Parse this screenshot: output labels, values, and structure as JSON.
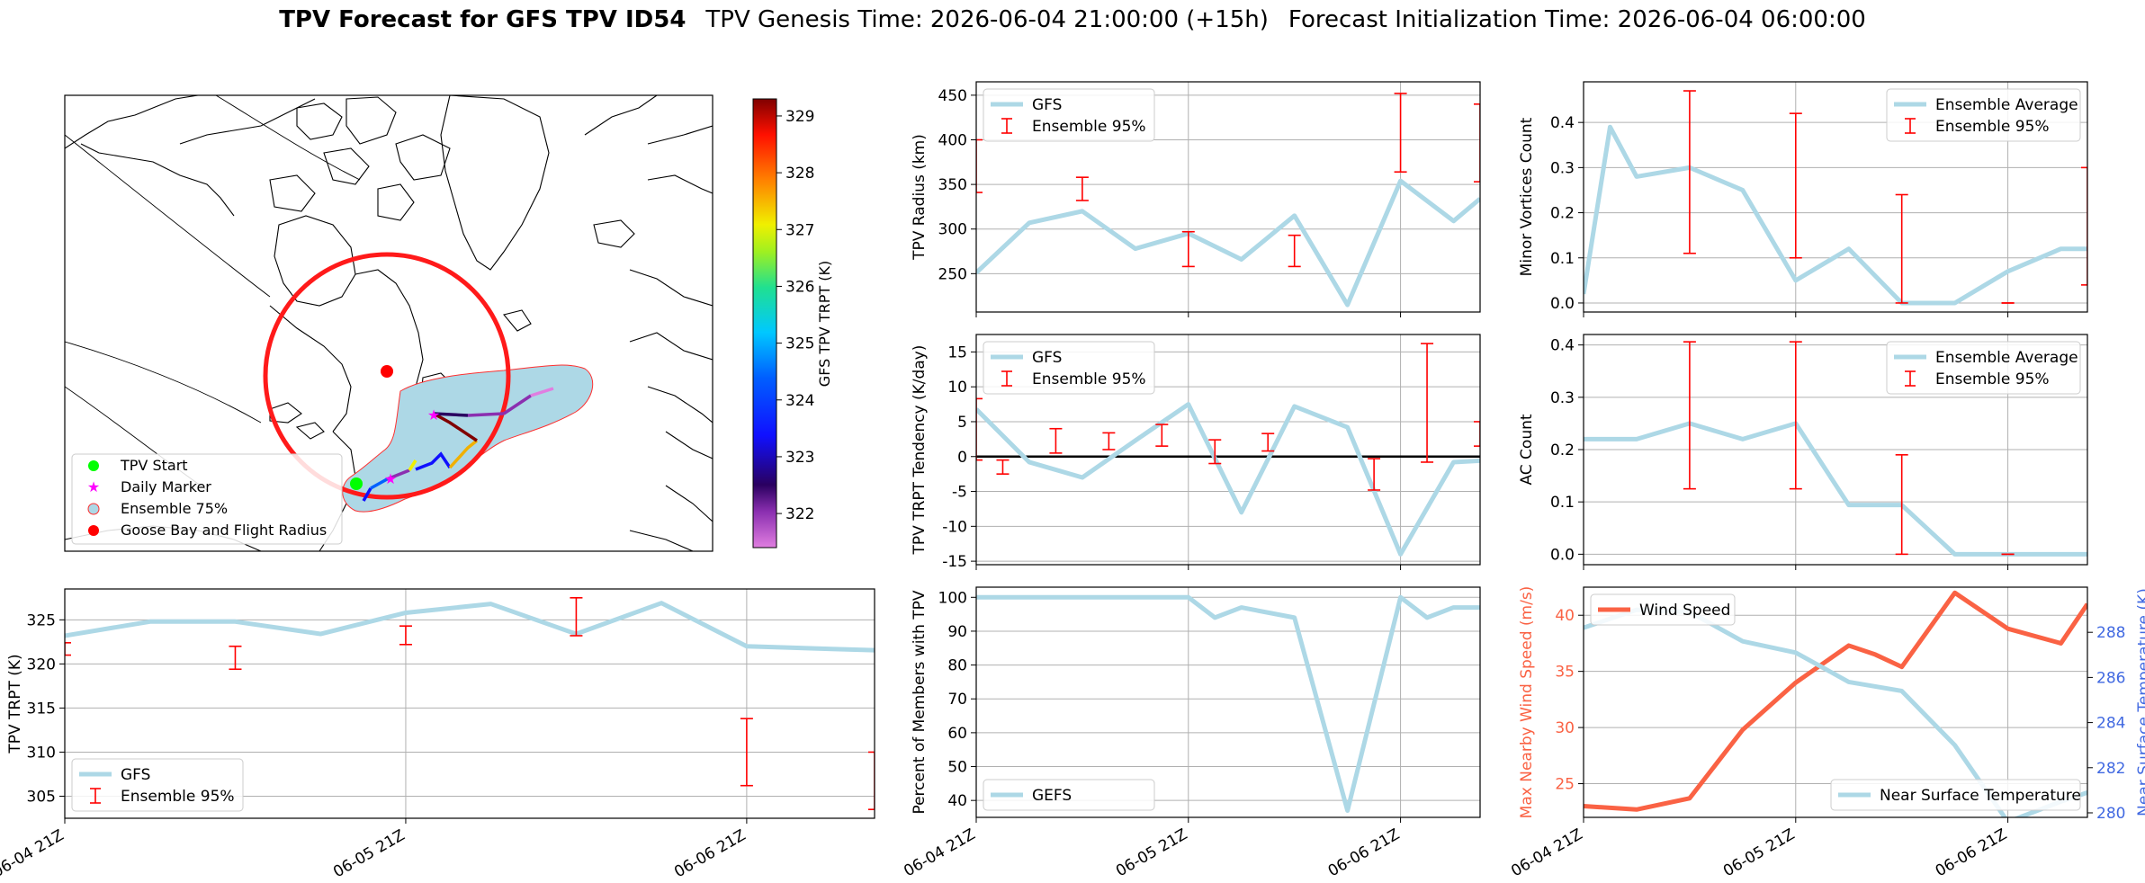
{
  "title": {
    "bold": "TPV Forecast for GFS TPV ID54",
    "genesis": "TPV Genesis Time: 2026-06-04 21:00:00 (+15h)",
    "init": "Forecast Initialization Time: 2026-06-04 06:00:00"
  },
  "colors": {
    "gfs_line": "#add8e6",
    "errorbar": "#ff0000",
    "wind": "#fa6244",
    "temp_axis": "#4169e1",
    "circle": "#ff1a1a",
    "land": "#ffffff",
    "ensemble_area": "#add8e6"
  },
  "chart_data": [
    {
      "id": "map",
      "type": "map",
      "colorbar": {
        "label": "GFS TPV TRPT (K)",
        "range": [
          321.4,
          329.3
        ],
        "ticks": [
          322,
          323,
          324,
          325,
          326,
          327,
          328,
          329
        ]
      },
      "legend": {
        "position": "lower-left",
        "entries": [
          "TPV Start",
          "Daily Marker",
          "Ensemble 75%",
          "Goose Bay and Flight Radius"
        ]
      },
      "marker_colors": {
        "tpv_start": "#00ff00",
        "daily_marker": "#ff00ff",
        "goose_bay": "#ff0000"
      }
    },
    {
      "id": "trpt",
      "type": "line",
      "ylabel": "TPV TRPT (K)",
      "ylim": [
        302.5,
        328.5
      ],
      "yticks": [
        305,
        310,
        315,
        320,
        325
      ],
      "xlim": [
        0,
        57
      ],
      "xticks": [
        0,
        24,
        48
      ],
      "xtick_labels": [
        "06-04 21Z",
        "06-05 21Z",
        "06-06 21Z"
      ],
      "series": [
        {
          "name": "GFS",
          "x": [
            0,
            6,
            12,
            18,
            24,
            30,
            36,
            42,
            48,
            54,
            60
          ],
          "y": [
            323.2,
            324.8,
            324.8,
            323.4,
            325.8,
            326.8,
            323.4,
            326.9,
            322.0,
            321.7,
            321.4
          ]
        }
      ],
      "errorbars": {
        "name": "Ensemble 95%",
        "x": [
          0,
          12,
          24,
          36,
          48,
          57
        ],
        "low": [
          321.0,
          319.4,
          322.2,
          323.2,
          306.2,
          303.5
        ],
        "high": [
          322.4,
          322.0,
          324.3,
          327.5,
          313.8,
          310.0
        ]
      },
      "legend": "lower-left"
    },
    {
      "id": "radius",
      "type": "line",
      "ylabel": "TPV Radius (km)",
      "ylim": [
        207,
        465
      ],
      "yticks": [
        250,
        300,
        350,
        400,
        450
      ],
      "xlim": [
        0,
        57
      ],
      "xticks": [
        0,
        24,
        48
      ],
      "series": [
        {
          "name": "GFS",
          "x": [
            0,
            6,
            12,
            18,
            24,
            30,
            36,
            42,
            48,
            54,
            57
          ],
          "y": [
            251,
            307,
            320,
            278,
            295,
            266,
            315,
            215,
            354,
            309,
            334
          ]
        }
      ],
      "errorbars": {
        "name": "Ensemble 95%",
        "x": [
          0,
          12,
          24,
          36,
          48,
          57
        ],
        "low": [
          341,
          332,
          258,
          258,
          364,
          353
        ],
        "high": [
          400,
          358,
          297,
          293,
          452,
          440
        ]
      },
      "legend": "upper-left"
    },
    {
      "id": "tendency",
      "type": "line",
      "ylabel": "TPV TRPT Tendency (K/day)",
      "ylim": [
        -15.5,
        17.5
      ],
      "yticks": [
        -15,
        -10,
        -5,
        0,
        5,
        10,
        15
      ],
      "xlim": [
        0,
        57
      ],
      "xticks": [
        0,
        24,
        48
      ],
      "zero_line": true,
      "series": [
        {
          "name": "GFS",
          "x": [
            0,
            6,
            12,
            18,
            24,
            30,
            36,
            42,
            48,
            54,
            57
          ],
          "y": [
            6.8,
            -0.8,
            -3.0,
            2.3,
            7.5,
            -8.0,
            7.2,
            4.2,
            -14.0,
            -0.8,
            -0.6
          ]
        }
      ],
      "errorbars": {
        "name": "Ensemble 95%",
        "x": [
          0,
          3,
          9,
          15,
          21,
          27,
          33,
          45,
          51,
          57
        ],
        "low": [
          -0.5,
          -2.5,
          0.5,
          1.0,
          1.5,
          -1.0,
          0.8,
          -4.8,
          -0.8,
          1.5
        ],
        "high": [
          8.3,
          -0.5,
          4.0,
          3.4,
          4.6,
          2.4,
          3.3,
          -0.3,
          16.2,
          5.0
        ]
      },
      "legend": "upper-left"
    },
    {
      "id": "members",
      "type": "line",
      "ylabel": "Percent of Members with TPV",
      "ylim": [
        35,
        103
      ],
      "yticks": [
        40,
        50,
        60,
        70,
        80,
        90,
        100
      ],
      "xlim": [
        0,
        57
      ],
      "xticks": [
        0,
        24,
        48
      ],
      "xtick_labels": [
        "06-04 21Z",
        "06-05 21Z",
        "06-06 21Z"
      ],
      "series": [
        {
          "name": "GEFS",
          "x": [
            0,
            6,
            12,
            18,
            24,
            27,
            30,
            36,
            42,
            48,
            51,
            54,
            57
          ],
          "y": [
            100,
            100,
            100,
            100,
            100,
            94,
            97,
            94,
            37,
            100,
            94,
            97,
            97
          ]
        }
      ],
      "legend": "lower-left"
    },
    {
      "id": "minor",
      "type": "line",
      "ylabel": "Minor Vortices Count",
      "ylim": [
        -0.02,
        0.49
      ],
      "yticks": [
        0.0,
        0.1,
        0.2,
        0.3,
        0.4
      ],
      "ytick_labels": [
        "0.0",
        "0.1",
        "0.2",
        "0.3",
        "0.4"
      ],
      "xlim": [
        0,
        57
      ],
      "xticks": [
        0,
        24,
        48
      ],
      "series": [
        {
          "name": "Ensemble Average",
          "x": [
            0,
            3,
            6,
            12,
            18,
            24,
            30,
            36,
            42,
            48,
            54,
            57
          ],
          "y": [
            0.02,
            0.39,
            0.28,
            0.3,
            0.25,
            0.05,
            0.12,
            0.0,
            0.0,
            0.07,
            0.12,
            0.12
          ]
        }
      ],
      "errorbars": {
        "name": "Ensemble 95%",
        "x": [
          12,
          24,
          36,
          48,
          57
        ],
        "low": [
          0.11,
          0.1,
          0.0,
          0.0,
          0.04
        ],
        "high": [
          0.47,
          0.42,
          0.24,
          0.0,
          0.3
        ]
      },
      "legend": "upper-right"
    },
    {
      "id": "ac",
      "type": "line",
      "ylabel": "AC Count",
      "ylim": [
        -0.02,
        0.42
      ],
      "yticks": [
        0.0,
        0.1,
        0.2,
        0.3,
        0.4
      ],
      "ytick_labels": [
        "0.0",
        "0.1",
        "0.2",
        "0.3",
        "0.4"
      ],
      "xlim": [
        0,
        57
      ],
      "xticks": [
        0,
        24,
        48
      ],
      "series": [
        {
          "name": "Ensemble Average",
          "x": [
            0,
            6,
            12,
            18,
            24,
            30,
            36,
            42,
            48,
            54,
            57
          ],
          "y": [
            0.22,
            0.22,
            0.25,
            0.22,
            0.25,
            0.094,
            0.094,
            0.0,
            0.0,
            0.0,
            0.0
          ]
        }
      ],
      "errorbars": {
        "name": "Ensemble 95%",
        "x": [
          12,
          24,
          36,
          48
        ],
        "low": [
          0.125,
          0.125,
          0.0,
          0.0
        ],
        "high": [
          0.406,
          0.406,
          0.19,
          0.0
        ]
      },
      "legend": "upper-right"
    },
    {
      "id": "wind_temp",
      "type": "line",
      "ylabel": "Max Nearby Wind Speed (m/s)",
      "ylabel_right": "Near Surface Temperature (K)",
      "ylim": [
        22,
        42.5
      ],
      "yticks": [
        25,
        30,
        35,
        40
      ],
      "ylim_right": [
        279.8,
        290.0
      ],
      "yticks_right": [
        280,
        282,
        284,
        286,
        288
      ],
      "xlim": [
        0,
        57
      ],
      "xticks": [
        0,
        24,
        48
      ],
      "xtick_labels": [
        "06-04 21Z",
        "06-05 21Z",
        "06-06 21Z"
      ],
      "series": [
        {
          "name": "Wind Speed",
          "axis": "left",
          "x": [
            0,
            6,
            12,
            18,
            24,
            30,
            33,
            36,
            42,
            48,
            54,
            57
          ],
          "y": [
            23.0,
            22.7,
            23.7,
            29.8,
            34.0,
            37.3,
            36.5,
            35.4,
            42.0,
            38.8,
            37.5,
            41.0
          ]
        },
        {
          "name": "Near Surface Temperature",
          "axis": "right",
          "x": [
            0,
            6,
            12,
            18,
            24,
            30,
            36,
            42,
            48,
            54,
            57
          ],
          "y": [
            288.2,
            289.0,
            288.9,
            287.6,
            287.1,
            285.8,
            285.4,
            283.0,
            279.6,
            280.5,
            280.9
          ]
        }
      ],
      "legend": "upper-left / lower-right"
    }
  ]
}
